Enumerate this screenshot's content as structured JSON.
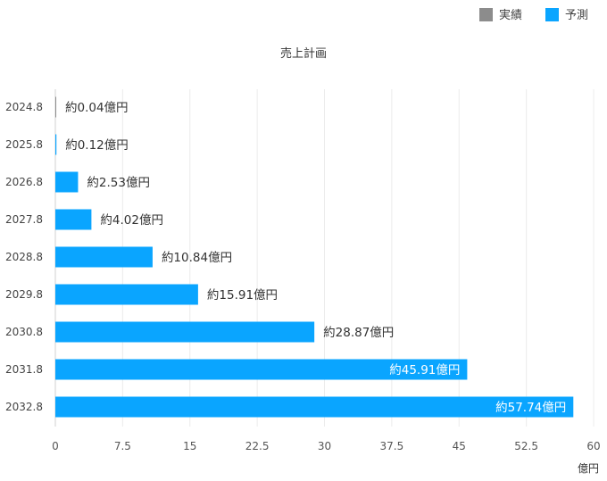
{
  "chart_data": {
    "type": "bar",
    "orientation": "horizontal",
    "title": "売上計画",
    "xlabel": "億円",
    "xlim": [
      0,
      60
    ],
    "xticks": [
      "0",
      "7.5",
      "15",
      "22.5",
      "30",
      "37.5",
      "45",
      "52.5",
      "60"
    ],
    "grid": true,
    "legend_position": "top-right",
    "legend": [
      {
        "name": "実績",
        "color": "#8c8c8c"
      },
      {
        "name": "予測",
        "color": "#0aa5ff"
      }
    ],
    "categories": [
      "2024.8",
      "2025.8",
      "2026.8",
      "2027.8",
      "2028.8",
      "2029.8",
      "2030.8",
      "2031.8",
      "2032.8"
    ],
    "values": [
      0.04,
      0.12,
      2.53,
      4.02,
      10.84,
      15.91,
      28.87,
      45.91,
      57.74
    ],
    "labels": [
      "約0.04億円",
      "約0.12億円",
      "約2.53億円",
      "約4.02億円",
      "約10.84億円",
      "約15.91億円",
      "約28.87億円",
      "約45.91億円",
      "約57.74億円"
    ],
    "series_of_bar": [
      "実績",
      "予測",
      "予測",
      "予測",
      "予測",
      "予測",
      "予測",
      "予測",
      "予測"
    ]
  }
}
